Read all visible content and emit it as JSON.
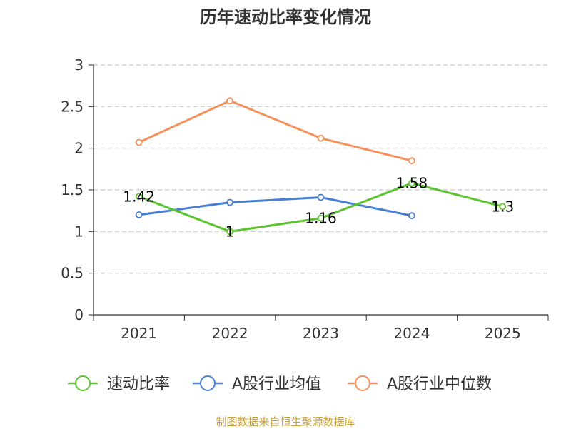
{
  "chart_data": {
    "type": "line",
    "title": "历年速动比率变化情况",
    "categories": [
      "2021",
      "2022",
      "2023",
      "2024",
      "2025"
    ],
    "ylim": [
      0,
      3
    ],
    "yticks": [
      0,
      0.5,
      1,
      1.5,
      2,
      2.5,
      3
    ],
    "ytick_labels": [
      "0",
      "0.5",
      "1",
      "1.5",
      "2",
      "2.5",
      "3"
    ],
    "grid": true,
    "legend_position": "bottom",
    "series": [
      {
        "name": "速动比率",
        "color": "#5cc42f",
        "values": [
          1.42,
          1,
          1.16,
          1.58,
          1.3
        ],
        "data_labels": [
          "1.42",
          "1",
          "1.16",
          "1.58",
          "1.3"
        ]
      },
      {
        "name": "A股行业均值",
        "color": "#4a7fd6",
        "values": [
          1.2,
          1.35,
          1.41,
          1.19,
          null
        ]
      },
      {
        "name": "A股行业中位数",
        "color": "#f5905a",
        "values": [
          2.07,
          2.57,
          2.12,
          1.85,
          null
        ]
      }
    ]
  },
  "source": "制图数据来自恒生聚源数据库"
}
